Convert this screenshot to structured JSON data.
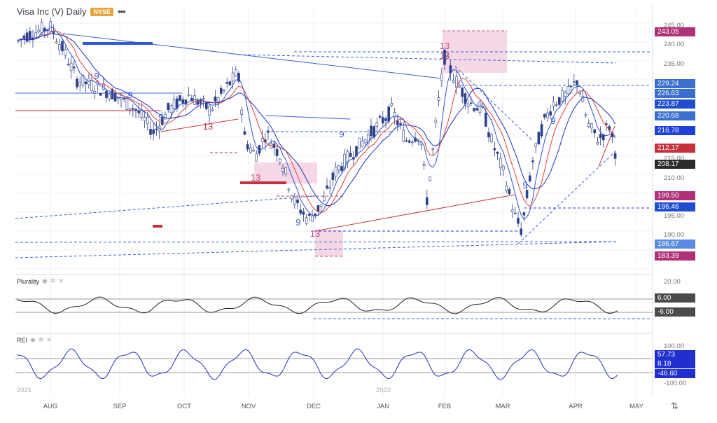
{
  "header": {
    "title": "Visa Inc (V) Daily",
    "exchange": "NYSE",
    "more": "•••"
  },
  "panes": {
    "plurality": {
      "label": "Plurality"
    },
    "rei": {
      "label": "REI"
    }
  },
  "price_axis": [
    "245.00",
    "240.00",
    "235.00",
    "230.00",
    "225.00",
    "215.00",
    "210.00",
    "205.00",
    "195.00",
    "190.00",
    "185.00"
  ],
  "price_tags": [
    {
      "text": "243.05",
      "color": "#b0307a"
    },
    {
      "text": "229.24",
      "color": "#3a6fcf"
    },
    {
      "text": "226.63",
      "color": "#3a6fcf"
    },
    {
      "text": "223.87",
      "color": "#1f4fd0"
    },
    {
      "text": "220.68",
      "color": "#3a6fcf"
    },
    {
      "text": "216.78",
      "color": "#1f3fd8"
    },
    {
      "text": "212.17",
      "color": "#c8303c"
    },
    {
      "text": "208.17",
      "color": "#2b2b2b"
    },
    {
      "text": "199.50",
      "color": "#b0307a"
    },
    {
      "text": "196.46",
      "color": "#1f4fd0"
    },
    {
      "text": "186.67",
      "color": "#5a8be6"
    },
    {
      "text": "183.39",
      "color": "#b0307a"
    }
  ],
  "plurality_axis": {
    "top": "20.00",
    "bottom": "-20.00"
  },
  "plurality_tags": [
    {
      "text": "6.00",
      "color": "#4a4a4a"
    },
    {
      "text": "-6.00",
      "color": "#4a4a4a"
    }
  ],
  "rei_axis": {
    "top": "100.00",
    "bottom": "-100.00"
  },
  "rei_tags": [
    {
      "text": "57.73",
      "color": "#1f2fd0"
    },
    {
      "text": "8.18",
      "color": "#1f2fd0"
    },
    {
      "text": "-46.60",
      "color": "#1f2fd0"
    }
  ],
  "x_axis": [
    "AUG",
    "SEP",
    "OCT",
    "NOV",
    "DEC",
    "JAN",
    "FEB",
    "MAR",
    "APR",
    "MAY"
  ],
  "years": [
    "2021",
    "2022"
  ],
  "annotations": [
    "9",
    "9",
    "9",
    "13",
    "13",
    "9",
    "13",
    "13",
    "9",
    "13",
    "9",
    "9"
  ],
  "colors": {
    "bull": "#ffffff",
    "bear": "#2a3f8a",
    "ma_fast": "#e0403c",
    "ma_slow": "#3050d0",
    "trend": "#3a60d8",
    "highlight": "#f6d7e6"
  }
}
